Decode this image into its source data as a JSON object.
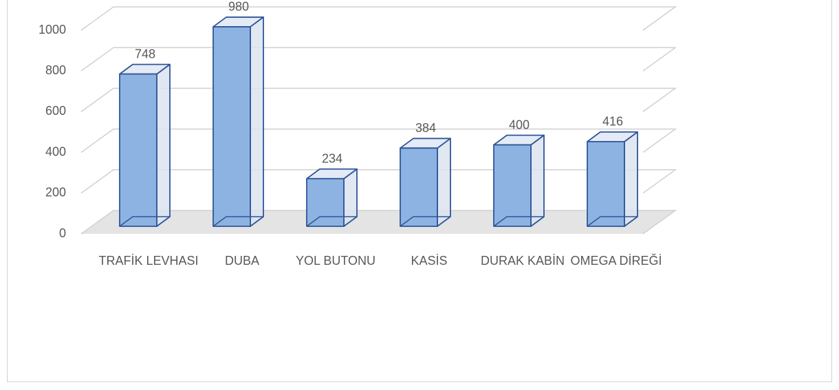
{
  "chart_data": {
    "type": "bar3d",
    "categories": [
      "TRAFİK LEVHASI",
      "DUBA",
      "YOL BUTONU",
      "KASİS",
      "DURAK KABİN",
      "OMEGA DİREĞİ"
    ],
    "values": [
      748,
      980,
      234,
      384,
      400,
      416
    ],
    "color": "#8db3e2",
    "ylim": [
      0,
      1000
    ],
    "yticks": [
      0,
      200,
      400,
      600,
      800,
      1000
    ],
    "grid": true
  }
}
